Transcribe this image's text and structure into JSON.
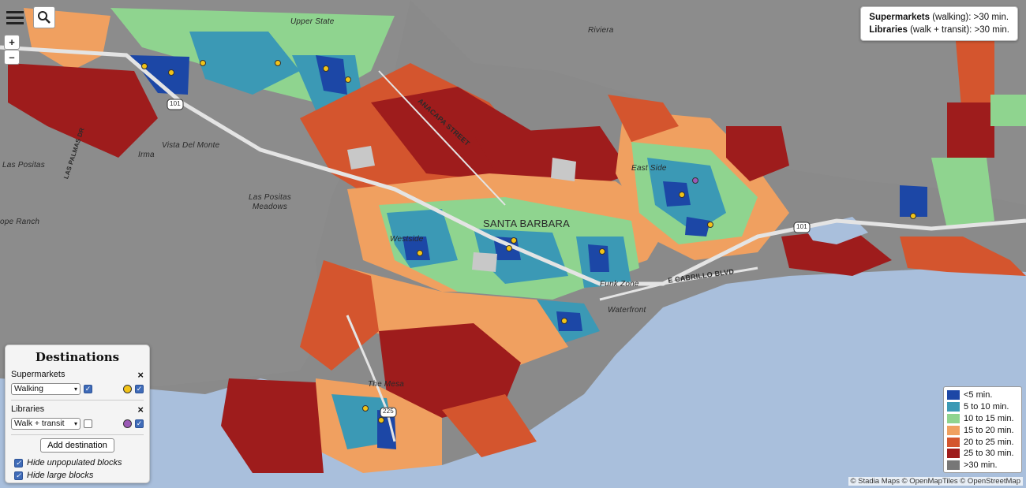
{
  "info": {
    "line1_label": "Supermarkets",
    "line1_mode": "(walking):",
    "line1_value": ">30 min.",
    "line2_label": "Libraries",
    "line2_mode": "(walk + transit):",
    "line2_value": ">30 min."
  },
  "zoom": {
    "in_label": "+",
    "out_label": "–"
  },
  "panel": {
    "title": "Destinations",
    "supermarkets_label": "Supermarkets",
    "supermarkets_mode": "Walking",
    "supermarkets_color": "#f2c318",
    "libraries_label": "Libraries",
    "libraries_mode": "Walk + transit",
    "libraries_color": "#9b59b6",
    "close_symbol": "×",
    "add_button": "Add destination",
    "hide_unpopulated": "Hide unpopulated blocks",
    "hide_large": "Hide large blocks"
  },
  "legend": [
    {
      "label": "<5 min.",
      "color": "#1c47a6"
    },
    {
      "label": "5 to 10 min.",
      "color": "#3b99b5"
    },
    {
      "label": "10 to 15 min.",
      "color": "#8fd48f"
    },
    {
      "label": "15 to 20 min.",
      "color": "#f0a060"
    },
    {
      "label": "20 to 25 min.",
      "color": "#d4552e"
    },
    {
      "label": "25 to 30 min.",
      "color": "#9e1c1c"
    },
    {
      "label": ">30 min.",
      "color": "#777777"
    }
  ],
  "labels": {
    "upper_state": "Upper State",
    "riviera": "Riviera",
    "anacapa": "ANACAPA STREET",
    "santa_barbara": "SANTA BARBARA",
    "westside": "Westside",
    "east_side": "East Side",
    "funk_zone": "Funk Zone",
    "waterfront": "Waterfront",
    "cabrillo": "E CABRILLO BLVD",
    "the_mesa": "The Mesa",
    "vista_del_monte": "Vista Del Monte",
    "irma": "Irma",
    "las_positas": "Las Positas",
    "las_positas_meadows": "Las Positas Meadows",
    "las_palmas": "LAS PALMAS DR",
    "hope_ranch": "ope Ranch",
    "route_101": "101",
    "route_225": "225"
  },
  "attribution": "© Stadia Maps © OpenMapTiles © OpenStreetMap"
}
